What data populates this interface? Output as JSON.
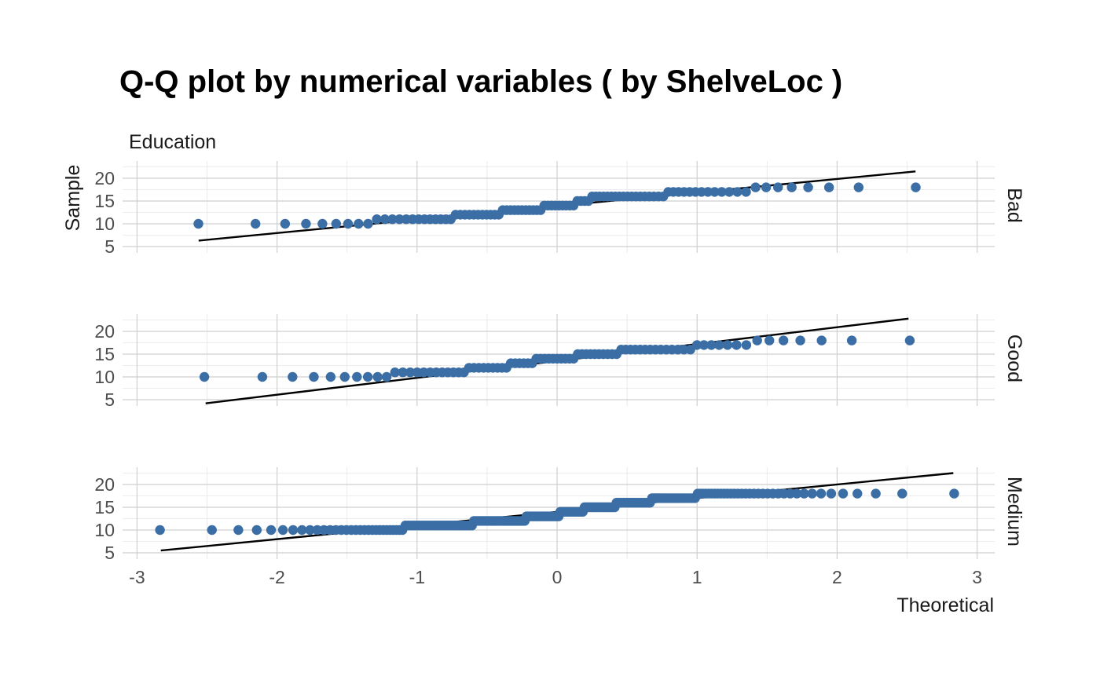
{
  "chart_data": {
    "type": "scatter",
    "title": "Q-Q plot by numerical variables ( by ShelveLoc )",
    "subtitle": "Education",
    "xlabel": "Theoretical",
    "ylabel": "Sample",
    "xlim": [
      -3,
      3
    ],
    "ylim": [
      5,
      22
    ],
    "x_ticks": [
      "-3",
      "-2",
      "-1",
      "0",
      "1",
      "2",
      "3"
    ],
    "y_ticks": [
      "5",
      "10",
      "15",
      "20"
    ],
    "grid": true,
    "point_color": "#3a6ea5",
    "line_color": "#000000",
    "panels": [
      {
        "facet": "Bad",
        "n": 96,
        "levels": [
          {
            "value": 10,
            "count": 9
          },
          {
            "value": 11,
            "count": 13
          },
          {
            "value": 12,
            "count": 11
          },
          {
            "value": 13,
            "count": 11
          },
          {
            "value": 14,
            "count": 9
          },
          {
            "value": 15,
            "count": 4
          },
          {
            "value": 16,
            "count": 18
          },
          {
            "value": 17,
            "count": 13
          },
          {
            "value": 18,
            "count": 8
          }
        ],
        "line": {
          "x": [
            -2.56,
            2.56
          ],
          "y": [
            6.3,
            21.5
          ]
        }
      },
      {
        "facet": "Good",
        "n": 85,
        "levels": [
          {
            "value": 10,
            "count": 10
          },
          {
            "value": 11,
            "count": 12
          },
          {
            "value": 12,
            "count": 9
          },
          {
            "value": 13,
            "count": 6
          },
          {
            "value": 14,
            "count": 10
          },
          {
            "value": 15,
            "count": 10
          },
          {
            "value": 16,
            "count": 14
          },
          {
            "value": 17,
            "count": 7
          },
          {
            "value": 18,
            "count": 7
          }
        ],
        "line": {
          "x": [
            -2.51,
            2.51
          ],
          "y": [
            4.2,
            22.8
          ]
        }
      },
      {
        "facet": "Medium",
        "n": 219,
        "levels": [
          {
            "value": 10,
            "count": 30
          },
          {
            "value": 11,
            "count": 30
          },
          {
            "value": 12,
            "count": 30
          },
          {
            "value": 13,
            "count": 21
          },
          {
            "value": 14,
            "count": 15
          },
          {
            "value": 15,
            "count": 19
          },
          {
            "value": 16,
            "count": 19
          },
          {
            "value": 17,
            "count": 20
          },
          {
            "value": 18,
            "count": 35
          }
        ],
        "line": {
          "x": [
            -2.83,
            2.83
          ],
          "y": [
            5.5,
            22.5
          ]
        }
      }
    ]
  }
}
